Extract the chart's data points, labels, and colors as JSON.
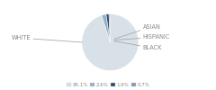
{
  "labels": [
    "WHITE",
    "ASIAN",
    "HISPANIC",
    "BLACK"
  ],
  "values": [
    95.1,
    2.6,
    1.6,
    0.7
  ],
  "colors": [
    "#d8e0e8",
    "#96afc4",
    "#2d4a6b",
    "#7a9ab5"
  ],
  "legend_labels": [
    "95.1%",
    "2.6%",
    "1.6%",
    "0.7%"
  ],
  "legend_colors": [
    "#d8e0e8",
    "#96afc4",
    "#2d4a6b",
    "#7a9ab5"
  ],
  "startangle": 90,
  "background_color": "#ffffff",
  "text_color": "#888888",
  "line_color": "#aaaaaa"
}
